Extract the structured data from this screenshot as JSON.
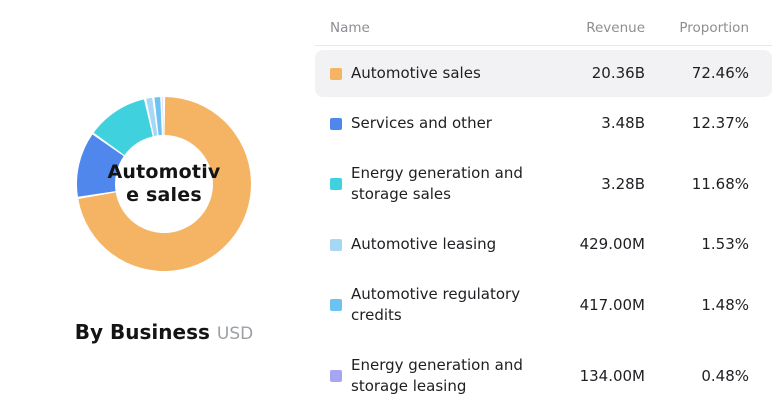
{
  "chart_data": {
    "type": "pie",
    "title": "By Business",
    "subtitle": "USD",
    "center_label_lines": [
      "Automotiv",
      "e sales"
    ],
    "legend_position": "right-table",
    "donut": {
      "start_angle_deg": 0,
      "direction": "clockwise"
    },
    "series": [
      {
        "name": "Automotive sales",
        "revenue": "20.36B",
        "proportion": "72.46%",
        "value": 72.46,
        "color": "#f4b464"
      },
      {
        "name": "Services and other",
        "revenue": "3.48B",
        "proportion": "12.37%",
        "value": 12.37,
        "color": "#5087ec"
      },
      {
        "name": "Energy generation and storage sales",
        "revenue": "3.28B",
        "proportion": "11.68%",
        "value": 11.68,
        "color": "#3fd1de"
      },
      {
        "name": "Automotive leasing",
        "revenue": "429.00M",
        "proportion": "1.53%",
        "value": 1.53,
        "color": "#a6d8f5"
      },
      {
        "name": "Automotive regulatory credits",
        "revenue": "417.00M",
        "proportion": "1.48%",
        "value": 1.48,
        "color": "#6cc2f2"
      },
      {
        "name": "Energy generation and storage leasing",
        "revenue": "134.00M",
        "proportion": "0.48%",
        "value": 0.48,
        "color": "#a7a4f2"
      }
    ]
  },
  "table": {
    "columns": {
      "name": "Name",
      "revenue": "Revenue",
      "proportion": "Proportion"
    },
    "highlighted_row_index": 0
  },
  "colors": {
    "row_highlight": "#f2f2f5",
    "header_text": "#8e8e93",
    "body_text": "#1f1f23",
    "divider": "#e8e8eb",
    "subtitle_text": "#9ba0a5"
  }
}
